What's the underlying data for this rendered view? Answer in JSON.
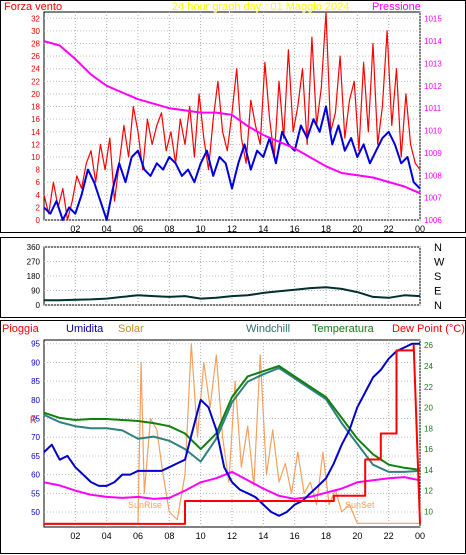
{
  "header": {
    "left_label": "Forza vento",
    "title": "24 hour graph day : 01 Maggio 2024",
    "right_label": "Pressione"
  },
  "panel_direction": {
    "right_labels": [
      "N",
      "W",
      "S",
      "E",
      "N"
    ]
  },
  "panel_bottom": {
    "labels": {
      "pioggia": "Pioggia",
      "umidita": "Umidita",
      "solar": "Solar",
      "windchill": "Windchill",
      "temperatura": "Temperatura",
      "dewpoint": "Dew Point (°C)"
    },
    "rain_marker": "R",
    "sunrise": "SunRise",
    "sunset": "SunSet"
  },
  "colors": {
    "wind": "#ff0000",
    "gust": "#0000dd",
    "pressure": "#ff00ff",
    "direction": "#003030",
    "rain": "#ff0000",
    "humidity": "#0000cc",
    "solar": "#f4a060",
    "windchill": "#308080",
    "temperature": "#108010",
    "dewpoint": "#ff00ff",
    "title": "#ffff00"
  },
  "chart_data": [
    {
      "type": "line",
      "x_ticks": [
        "02",
        "04",
        "06",
        "08",
        "10",
        "12",
        "14",
        "16",
        "18",
        "20",
        "22",
        "00"
      ],
      "y_left_ticks": [
        0,
        2,
        4,
        6,
        8,
        10,
        12,
        14,
        16,
        18,
        20,
        22,
        24,
        26,
        28,
        30,
        32
      ],
      "y_left_range": [
        0,
        33
      ],
      "y_right_ticks": [
        1006,
        1007,
        1008,
        1009,
        1010,
        1011,
        1012,
        1013,
        1014,
        1015
      ],
      "y_right_range": [
        1006,
        1015.3
      ],
      "series": [
        {
          "key": "wind_red",
          "axis": "left",
          "x": [
            0,
            0.3,
            0.6,
            0.9,
            1.2,
            1.5,
            1.8,
            2.1,
            2.4,
            2.7,
            3,
            3.3,
            3.6,
            3.9,
            4.2,
            4.5,
            4.8,
            5.1,
            5.4,
            5.7,
            6,
            6.3,
            6.6,
            6.9,
            7.2,
            7.5,
            7.8,
            8.1,
            8.4,
            8.7,
            9,
            9.3,
            9.6,
            9.9,
            10.2,
            10.5,
            10.8,
            11.1,
            11.4,
            11.7,
            12,
            12.3,
            12.6,
            12.9,
            13.2,
            13.5,
            13.8,
            14.1,
            14.4,
            14.7,
            15,
            15.3,
            15.6,
            15.9,
            16.2,
            16.5,
            16.8,
            17.1,
            17.4,
            17.7,
            18,
            18.3,
            18.6,
            18.9,
            19.2,
            19.5,
            19.8,
            20.1,
            20.4,
            20.7,
            21,
            21.3,
            21.6,
            21.9,
            22.2,
            22.5,
            22.8,
            23.1,
            23.4,
            23.7,
            24
          ],
          "y": [
            4,
            1,
            6,
            2,
            5,
            0,
            3,
            7,
            5,
            9,
            11,
            6,
            12,
            8,
            13,
            3,
            9,
            15,
            10,
            18,
            14,
            8,
            16,
            12,
            15,
            17,
            11,
            14,
            9,
            16,
            12,
            18,
            10,
            20,
            13,
            8,
            16,
            22,
            14,
            11,
            17,
            24,
            13,
            9,
            19,
            15,
            12,
            25,
            16,
            10,
            22,
            13,
            27,
            14,
            18,
            24,
            12,
            29,
            15,
            21,
            33,
            14,
            17,
            26,
            13,
            19,
            22,
            11,
            25,
            14,
            28,
            12,
            18,
            30,
            15,
            24,
            10,
            20,
            12,
            9,
            8
          ]
        },
        {
          "key": "gust_blue",
          "axis": "left",
          "x": [
            0,
            0.4,
            0.8,
            1.2,
            1.6,
            2,
            2.4,
            2.8,
            3.2,
            3.6,
            4,
            4.4,
            4.8,
            5.2,
            5.6,
            6,
            6.4,
            6.8,
            7.2,
            7.6,
            8,
            8.4,
            8.8,
            9.2,
            9.6,
            10,
            10.4,
            10.8,
            11.2,
            11.6,
            12,
            12.4,
            12.8,
            13.2,
            13.6,
            14,
            14.4,
            14.8,
            15.2,
            15.6,
            16,
            16.4,
            16.8,
            17.2,
            17.6,
            18,
            18.4,
            18.8,
            19.2,
            19.6,
            20,
            20.4,
            20.8,
            21.2,
            21.6,
            22,
            22.4,
            22.8,
            23.2,
            23.6,
            24
          ],
          "y": [
            2,
            1,
            3,
            0,
            2,
            1,
            4,
            8,
            6,
            3,
            0,
            5,
            9,
            6,
            10,
            11,
            8,
            7,
            9,
            8,
            10,
            9,
            7,
            8,
            6,
            9,
            11,
            7,
            10,
            9,
            5,
            9,
            12,
            8,
            11,
            10,
            13,
            9,
            14,
            12,
            11,
            15,
            13,
            16,
            14,
            18,
            12,
            15,
            11,
            13,
            10,
            12,
            9,
            11,
            13,
            14,
            12,
            9,
            10,
            6,
            5
          ]
        },
        {
          "key": "pressure_magenta",
          "axis": "right",
          "x": [
            0,
            1,
            2,
            3,
            4,
            5,
            6,
            7,
            8,
            9,
            10,
            11,
            12,
            13,
            14,
            15,
            16,
            17,
            18,
            19,
            20,
            21,
            22,
            23,
            24
          ],
          "y": [
            1014.0,
            1013.8,
            1013.2,
            1012.5,
            1012.0,
            1011.7,
            1011.4,
            1011.2,
            1011.0,
            1010.9,
            1010.8,
            1010.8,
            1010.7,
            1010.2,
            1009.8,
            1009.5,
            1009.2,
            1008.8,
            1008.4,
            1008.1,
            1008.0,
            1007.9,
            1007.7,
            1007.5,
            1007.2
          ]
        }
      ]
    },
    {
      "type": "line",
      "x_ticks": [],
      "y_ticks": [
        0,
        90,
        180,
        270,
        360
      ],
      "y_range": [
        0,
        360
      ],
      "series": [
        {
          "key": "direction",
          "x": [
            0,
            1,
            2,
            3,
            4,
            5,
            6,
            7,
            8,
            9,
            10,
            11,
            12,
            13,
            14,
            15,
            16,
            17,
            18,
            19,
            20,
            21,
            22,
            23,
            24
          ],
          "y": [
            30,
            30,
            32,
            35,
            40,
            50,
            60,
            55,
            50,
            55,
            40,
            45,
            55,
            60,
            75,
            85,
            95,
            105,
            110,
            100,
            80,
            50,
            45,
            60,
            55
          ]
        }
      ]
    },
    {
      "type": "line",
      "x_ticks": [
        "02",
        "04",
        "06",
        "08",
        "10",
        "12",
        "14",
        "16",
        "18",
        "20",
        "22",
        "00"
      ],
      "y_left_ticks": [
        50,
        55,
        60,
        65,
        70,
        75,
        80,
        85,
        90,
        95
      ],
      "y_left_range": [
        46,
        96
      ],
      "y_right_ticks": [
        10,
        12,
        14,
        16,
        18,
        20,
        22,
        24,
        26
      ],
      "y_right_range": [
        8.5,
        26.5
      ],
      "series": [
        {
          "key": "humidity",
          "axis": "left",
          "x": [
            0,
            0.5,
            1,
            1.5,
            2,
            2.5,
            3,
            3.5,
            4,
            4.5,
            5,
            5.5,
            6,
            6.5,
            7,
            7.5,
            8,
            8.5,
            9,
            9.5,
            10,
            10.5,
            11,
            11.5,
            12,
            12.5,
            13,
            13.5,
            14,
            14.5,
            15,
            15.5,
            16,
            16.5,
            17,
            17.5,
            18,
            18.5,
            19,
            19.5,
            20,
            20.5,
            21,
            21.5,
            22,
            22.5,
            23,
            23.5,
            24
          ],
          "y": [
            66,
            68,
            64,
            65,
            62,
            60,
            58,
            57,
            57,
            58,
            60,
            60,
            61,
            61,
            61,
            61,
            62,
            63,
            64,
            72,
            80,
            78,
            72,
            62,
            58,
            56,
            55,
            54,
            52,
            50,
            49,
            50,
            52,
            53,
            55,
            57,
            59,
            63,
            68,
            72,
            78,
            82,
            86,
            88,
            91,
            93,
            94,
            95,
            95
          ]
        },
        {
          "key": "temperature",
          "axis": "right",
          "x": [
            0,
            1,
            2,
            3,
            4,
            5,
            6,
            7,
            8,
            9,
            10,
            11,
            12,
            13,
            14,
            15,
            16,
            17,
            18,
            19,
            20,
            21,
            22,
            23,
            24
          ],
          "y": [
            19.5,
            19,
            18.8,
            18.9,
            18.9,
            18.8,
            18.7,
            18.5,
            18.2,
            17.5,
            16.0,
            17.5,
            21.0,
            23.0,
            23.5,
            24.0,
            23.0,
            22.0,
            21.0,
            19.0,
            17.0,
            15.5,
            14.5,
            14.2,
            14.0
          ]
        },
        {
          "key": "windchill",
          "axis": "right",
          "x": [
            0,
            1,
            2,
            3,
            4,
            5,
            6,
            7,
            8,
            9,
            10,
            11,
            12,
            13,
            14,
            15,
            16,
            17,
            18,
            19,
            20,
            21,
            22,
            23,
            24
          ],
          "y": [
            19.3,
            18.6,
            18.2,
            18.0,
            18.0,
            17.8,
            17.0,
            17.2,
            16.8,
            16.0,
            14.8,
            17.0,
            20.5,
            22.5,
            23.2,
            23.8,
            22.8,
            21.8,
            20.8,
            18.5,
            16.5,
            14.5,
            13.8,
            13.8,
            13.9
          ]
        },
        {
          "key": "dewpoint",
          "axis": "right",
          "x": [
            0,
            1,
            2,
            3,
            4,
            5,
            6,
            7,
            8,
            9,
            10,
            11,
            12,
            13,
            14,
            15,
            16,
            17,
            18,
            19,
            20,
            21,
            22,
            23,
            24
          ],
          "y": [
            12.8,
            12.5,
            12.0,
            11.6,
            11.4,
            11.3,
            11.4,
            11.2,
            11.3,
            12.0,
            12.8,
            13.2,
            13.8,
            13.0,
            12.2,
            11.5,
            11.2,
            11.4,
            11.8,
            12.2,
            12.8,
            13.0,
            13.2,
            13.3,
            13.0
          ]
        },
        {
          "key": "rain",
          "axis": "right",
          "x": [
            0,
            9,
            9,
            18.5,
            18.5,
            20.5,
            20.5,
            21.5,
            21.5,
            22.5,
            22.5,
            23.6,
            23.6,
            24
          ],
          "y": [
            8.8,
            8.8,
            11.0,
            11.0,
            11.5,
            11.5,
            15.0,
            15.0,
            17.5,
            17.5,
            25.5,
            25.5,
            26.0,
            8.8
          ]
        },
        {
          "key": "solar",
          "axis": "left",
          "x": [
            0,
            6,
            6.2,
            6.4,
            6.8,
            7.2,
            7.6,
            8.0,
            8.5,
            9,
            9.4,
            9.8,
            10.2,
            10.6,
            11,
            11.4,
            11.8,
            12.2,
            12.6,
            13,
            13.4,
            13.8,
            14.2,
            14.6,
            15,
            15.4,
            15.8,
            16.2,
            16.6,
            17,
            17.4,
            17.8,
            18.2,
            18.6,
            19,
            19.5,
            20,
            24
          ],
          "y": [
            47,
            47,
            90,
            55,
            75,
            72,
            60,
            50,
            48,
            60,
            95,
            70,
            90,
            78,
            92,
            70,
            58,
            85,
            62,
            73,
            57,
            92,
            60,
            72,
            58,
            63,
            55,
            66,
            55,
            58,
            52,
            66,
            52,
            56,
            50,
            52,
            47,
            47
          ]
        }
      ]
    }
  ]
}
